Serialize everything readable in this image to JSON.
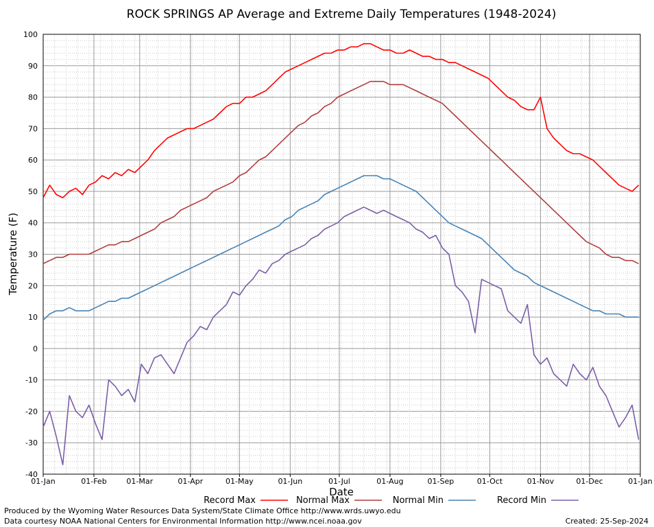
{
  "chart_data": {
    "type": "line",
    "title": "ROCK SPRINGS AP Average and Extreme Daily Temperatures (1948-2024)",
    "xlabel": "Date",
    "ylabel": "Temperature (F)",
    "ylim": [
      -40,
      100
    ],
    "y_ticks": [
      "100",
      "90",
      "80",
      "70",
      "60",
      "50",
      "40",
      "30",
      "20",
      "10",
      "0",
      "-10",
      "-20",
      "-30",
      "-40"
    ],
    "x_ticks": [
      {
        "day": 1,
        "label": "01-Jan"
      },
      {
        "day": 32,
        "label": "01-Feb"
      },
      {
        "day": 60,
        "label": "01-Mar"
      },
      {
        "day": 91,
        "label": "01-Apr"
      },
      {
        "day": 121,
        "label": "01-May"
      },
      {
        "day": 152,
        "label": "01-Jun"
      },
      {
        "day": 182,
        "label": "01-Jul"
      },
      {
        "day": 213,
        "label": "01-Aug"
      },
      {
        "day": 244,
        "label": "01-Sep"
      },
      {
        "day": 274,
        "label": "01-Oct"
      },
      {
        "day": 305,
        "label": "01-Nov"
      },
      {
        "day": 335,
        "label": "01-Dec"
      },
      {
        "day": 366,
        "label": "01-Jan"
      }
    ],
    "grid": true,
    "legend_position": "bottom",
    "x_unit": "day of year",
    "series": [
      {
        "name": "Record Max",
        "color": "#ff0000",
        "x": [
          1,
          5,
          9,
          13,
          17,
          21,
          25,
          29,
          33,
          37,
          41,
          45,
          49,
          53,
          57,
          61,
          65,
          69,
          73,
          77,
          81,
          85,
          89,
          93,
          97,
          101,
          105,
          109,
          113,
          117,
          121,
          125,
          129,
          133,
          137,
          141,
          145,
          149,
          153,
          157,
          161,
          165,
          169,
          173,
          177,
          181,
          185,
          189,
          193,
          197,
          201,
          205,
          209,
          213,
          217,
          221,
          225,
          229,
          233,
          237,
          241,
          245,
          249,
          253,
          257,
          261,
          265,
          269,
          273,
          277,
          281,
          285,
          289,
          293,
          297,
          301,
          305,
          309,
          313,
          317,
          321,
          325,
          329,
          333,
          337,
          341,
          345,
          349,
          353,
          357,
          361,
          365
        ],
        "y": [
          48,
          52,
          49,
          48,
          50,
          51,
          49,
          52,
          53,
          55,
          54,
          56,
          55,
          57,
          56,
          58,
          60,
          63,
          65,
          67,
          68,
          69,
          70,
          70,
          71,
          72,
          73,
          75,
          77,
          78,
          78,
          80,
          80,
          81,
          82,
          84,
          86,
          88,
          89,
          90,
          91,
          92,
          93,
          94,
          94,
          95,
          95,
          96,
          96,
          97,
          97,
          96,
          95,
          95,
          94,
          94,
          95,
          94,
          93,
          93,
          92,
          92,
          91,
          91,
          90,
          89,
          88,
          87,
          86,
          84,
          82,
          80,
          79,
          77,
          76,
          76,
          80,
          70,
          67,
          65,
          63,
          62,
          62,
          61,
          60,
          58,
          56,
          54,
          52,
          51,
          50,
          52
        ]
      },
      {
        "name": "Normal Max",
        "color": "#b03c3c",
        "x": [
          1,
          5,
          9,
          13,
          17,
          21,
          25,
          29,
          33,
          37,
          41,
          45,
          49,
          53,
          57,
          61,
          65,
          69,
          73,
          77,
          81,
          85,
          89,
          93,
          97,
          101,
          105,
          109,
          113,
          117,
          121,
          125,
          129,
          133,
          137,
          141,
          145,
          149,
          153,
          157,
          161,
          165,
          169,
          173,
          177,
          181,
          185,
          189,
          193,
          197,
          201,
          205,
          209,
          213,
          217,
          221,
          225,
          229,
          233,
          237,
          241,
          245,
          249,
          253,
          257,
          261,
          265,
          269,
          273,
          277,
          281,
          285,
          289,
          293,
          297,
          301,
          305,
          309,
          313,
          317,
          321,
          325,
          329,
          333,
          337,
          341,
          345,
          349,
          353,
          357,
          361,
          365
        ],
        "y": [
          27,
          28,
          29,
          29,
          30,
          30,
          30,
          30,
          31,
          32,
          33,
          33,
          34,
          34,
          35,
          36,
          37,
          38,
          40,
          41,
          42,
          44,
          45,
          46,
          47,
          48,
          50,
          51,
          52,
          53,
          55,
          56,
          58,
          60,
          61,
          63,
          65,
          67,
          69,
          71,
          72,
          74,
          75,
          77,
          78,
          80,
          81,
          82,
          83,
          84,
          85,
          85,
          85,
          84,
          84,
          84,
          83,
          82,
          81,
          80,
          79,
          78,
          76,
          74,
          72,
          70,
          68,
          66,
          64,
          62,
          60,
          58,
          56,
          54,
          52,
          50,
          48,
          46,
          44,
          42,
          40,
          38,
          36,
          34,
          33,
          32,
          30,
          29,
          29,
          28,
          28,
          27
        ]
      },
      {
        "name": "Normal Min",
        "color": "#4682b4",
        "x": [
          1,
          5,
          9,
          13,
          17,
          21,
          25,
          29,
          33,
          37,
          41,
          45,
          49,
          53,
          57,
          61,
          65,
          69,
          73,
          77,
          81,
          85,
          89,
          93,
          97,
          101,
          105,
          109,
          113,
          117,
          121,
          125,
          129,
          133,
          137,
          141,
          145,
          149,
          153,
          157,
          161,
          165,
          169,
          173,
          177,
          181,
          185,
          189,
          193,
          197,
          201,
          205,
          209,
          213,
          217,
          221,
          225,
          229,
          233,
          237,
          241,
          245,
          249,
          253,
          257,
          261,
          265,
          269,
          273,
          277,
          281,
          285,
          289,
          293,
          297,
          301,
          305,
          309,
          313,
          317,
          321,
          325,
          329,
          333,
          337,
          341,
          345,
          349,
          353,
          357,
          361,
          365
        ],
        "y": [
          9,
          11,
          12,
          12,
          13,
          12,
          12,
          12,
          13,
          14,
          15,
          15,
          16,
          16,
          17,
          18,
          19,
          20,
          21,
          22,
          23,
          24,
          25,
          26,
          27,
          28,
          29,
          30,
          31,
          32,
          33,
          34,
          35,
          36,
          37,
          38,
          39,
          41,
          42,
          44,
          45,
          46,
          47,
          49,
          50,
          51,
          52,
          53,
          54,
          55,
          55,
          55,
          54,
          54,
          53,
          52,
          51,
          50,
          48,
          46,
          44,
          42,
          40,
          39,
          38,
          37,
          36,
          35,
          33,
          31,
          29,
          27,
          25,
          24,
          23,
          21,
          20,
          19,
          18,
          17,
          16,
          15,
          14,
          13,
          12,
          12,
          11,
          11,
          11,
          10,
          10,
          10
        ]
      },
      {
        "name": "Record Min",
        "color": "#7b5ea7",
        "x": [
          1,
          5,
          9,
          13,
          17,
          21,
          25,
          29,
          33,
          37,
          41,
          45,
          49,
          53,
          57,
          61,
          65,
          69,
          73,
          77,
          81,
          85,
          89,
          93,
          97,
          101,
          105,
          109,
          113,
          117,
          121,
          125,
          129,
          133,
          137,
          141,
          145,
          149,
          153,
          157,
          161,
          165,
          169,
          173,
          177,
          181,
          185,
          189,
          193,
          197,
          201,
          205,
          209,
          213,
          217,
          221,
          225,
          229,
          233,
          237,
          241,
          245,
          249,
          253,
          257,
          261,
          265,
          269,
          273,
          277,
          281,
          285,
          289,
          293,
          297,
          301,
          305,
          309,
          313,
          317,
          321,
          325,
          329,
          333,
          337,
          341,
          345,
          349,
          353,
          357,
          361,
          365
        ],
        "y": [
          -25,
          -20,
          -28,
          -37,
          -15,
          -20,
          -22,
          -18,
          -24,
          -29,
          -10,
          -12,
          -15,
          -13,
          -17,
          -5,
          -8,
          -3,
          -2,
          -5,
          -8,
          -3,
          2,
          4,
          7,
          6,
          10,
          12,
          14,
          18,
          17,
          20,
          22,
          25,
          24,
          27,
          28,
          30,
          31,
          32,
          33,
          35,
          36,
          38,
          39,
          40,
          42,
          43,
          44,
          45,
          44,
          43,
          44,
          43,
          42,
          41,
          40,
          38,
          37,
          35,
          36,
          32,
          30,
          20,
          18,
          15,
          5,
          22,
          21,
          20,
          19,
          12,
          10,
          8,
          14,
          -2,
          -5,
          -3,
          -8,
          -10,
          -12,
          -5,
          -8,
          -10,
          -6,
          -12,
          -15,
          -20,
          -25,
          -22,
          -18,
          -29
        ]
      }
    ]
  },
  "footer": {
    "produced_by": "Produced by the Wyoming Water Resources Data System/State Climate Office http://www.wrds.uwyo.edu",
    "data_courtesy": "Data courtesy NOAA National Centers for Environmental Information http://www.ncei.noaa.gov",
    "created": "Created:  25-Sep-2024"
  }
}
